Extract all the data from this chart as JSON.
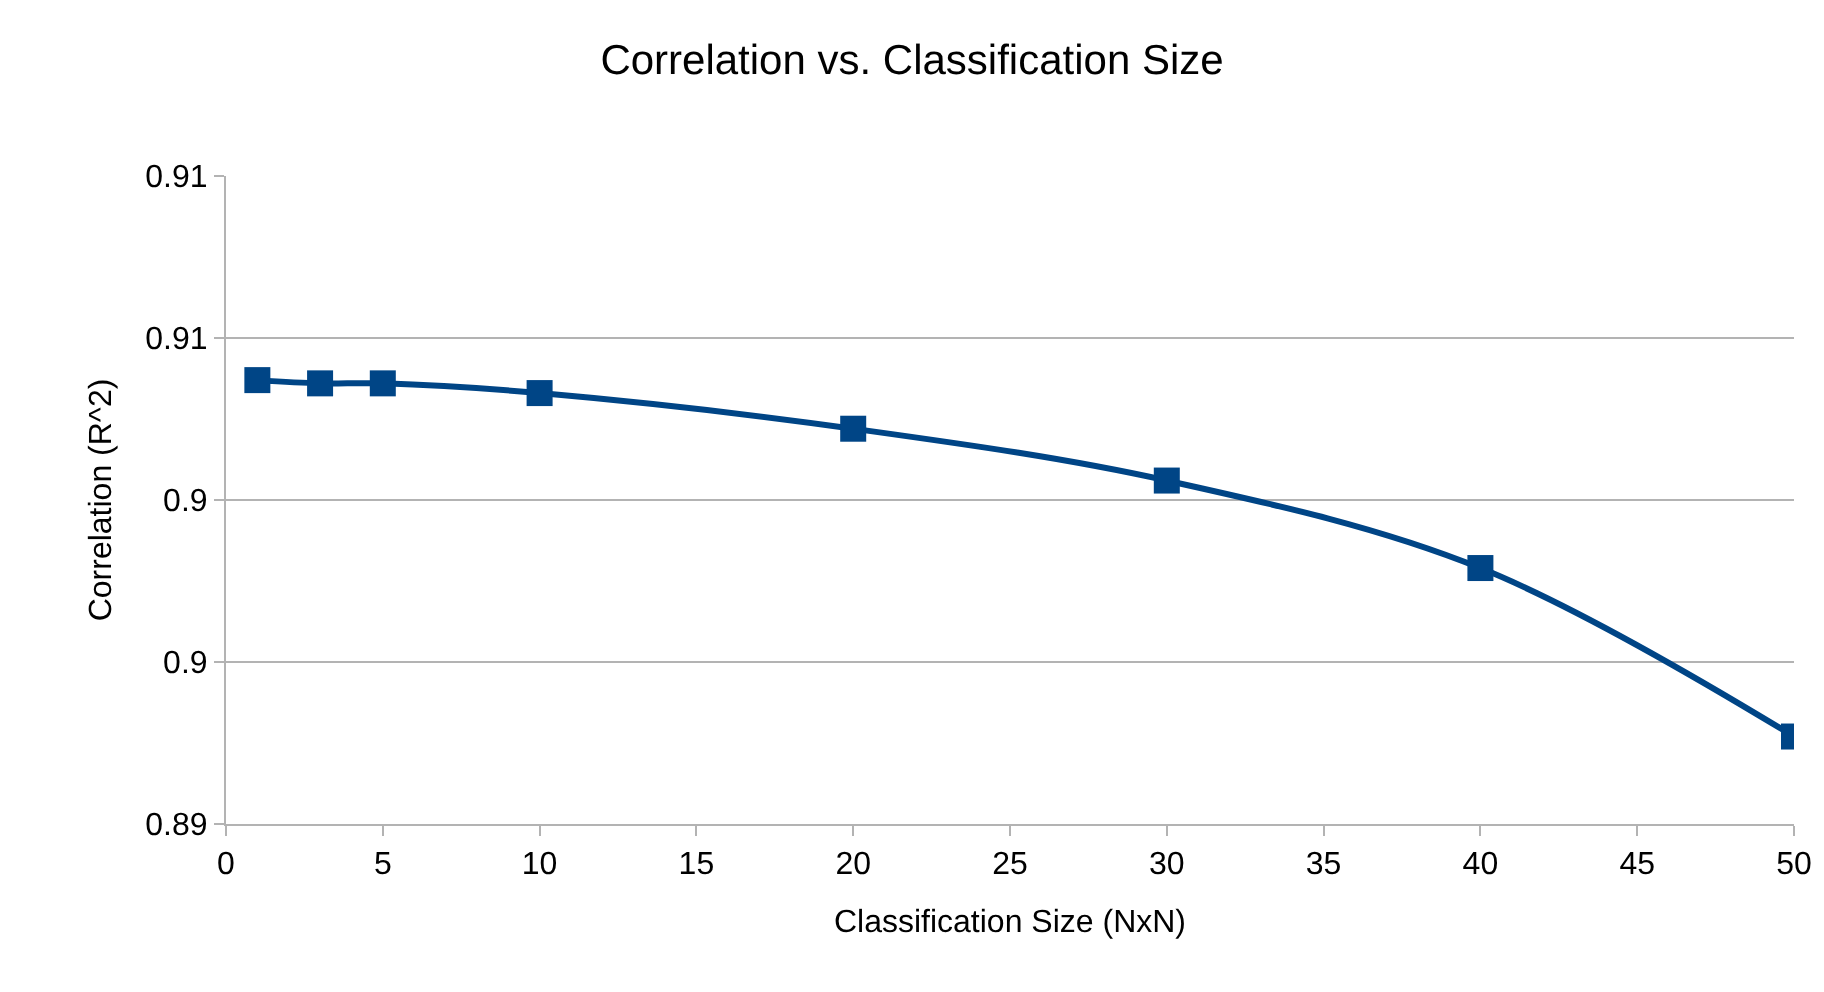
{
  "chart_data": {
    "type": "line",
    "title": "Correlation vs. Classification Size",
    "xlabel": "Classification Size (NxN)",
    "ylabel": "Correlation (R^2)",
    "x": [
      1,
      3,
      5,
      10,
      20,
      30,
      40,
      50
    ],
    "series": [
      {
        "color": "#004586",
        "values": [
          0.9037,
          0.9036,
          0.9036,
          0.9033,
          0.9022,
          0.9006,
          0.8979,
          0.8927
        ]
      }
    ],
    "xlim": [
      0,
      50
    ],
    "xticks": [
      0,
      5,
      10,
      15,
      20,
      25,
      30,
      35,
      40,
      45,
      50
    ],
    "ylim": [
      0.89,
      0.91
    ],
    "yticks": [
      {
        "value": 0.89,
        "label": "0.89"
      },
      {
        "value": 0.895,
        "label": "0.9"
      },
      {
        "value": 0.9,
        "label": "0.9"
      },
      {
        "value": 0.905,
        "label": "0.91"
      },
      {
        "value": 0.91,
        "label": "0.91"
      }
    ],
    "grid": "y",
    "marker": "square",
    "line_style": "solid"
  }
}
